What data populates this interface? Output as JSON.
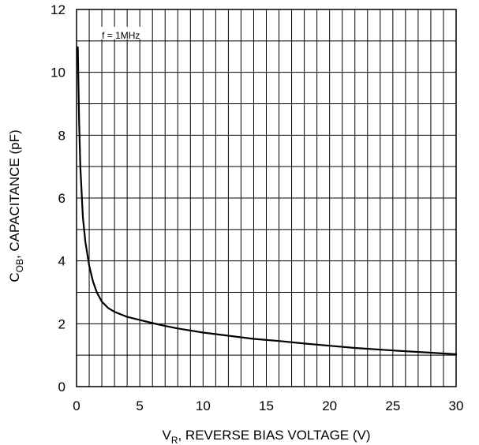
{
  "chart_data": {
    "type": "line",
    "annotation": "f = 1MHz",
    "xlabel": {
      "main": "V",
      "sub": "R",
      "rest": ", REVERSE BIAS VOLTAGE (V)"
    },
    "ylabel": {
      "main": "C",
      "sub": "OB",
      "rest": ", CAPACITANCE (pF)"
    },
    "xlim": [
      0,
      30
    ],
    "ylim": [
      0,
      12
    ],
    "x_ticks": [
      0,
      5,
      10,
      15,
      20,
      25,
      30
    ],
    "y_ticks": [
      0,
      2,
      4,
      6,
      8,
      10,
      12
    ],
    "x_minor_step": 1,
    "y_minor_step": 1,
    "grid": true,
    "legend": "none",
    "line_color": "#000000",
    "series": [
      {
        "x": [
          0.1,
          0.2,
          0.3,
          0.5,
          0.7,
          1.0,
          1.3,
          1.6,
          2.0,
          2.5,
          3.0,
          4.0,
          5.0,
          6.0,
          7.0,
          8.0,
          10.0,
          12.0,
          14.0,
          16.0,
          18.0,
          20.0,
          22.0,
          25.0,
          28.0,
          30.0
        ],
        "y": [
          10.8,
          8.5,
          7.0,
          5.4,
          4.6,
          3.85,
          3.35,
          3.0,
          2.7,
          2.5,
          2.38,
          2.22,
          2.12,
          2.02,
          1.93,
          1.85,
          1.72,
          1.62,
          1.52,
          1.45,
          1.37,
          1.3,
          1.23,
          1.15,
          1.08,
          1.03
        ]
      }
    ]
  }
}
